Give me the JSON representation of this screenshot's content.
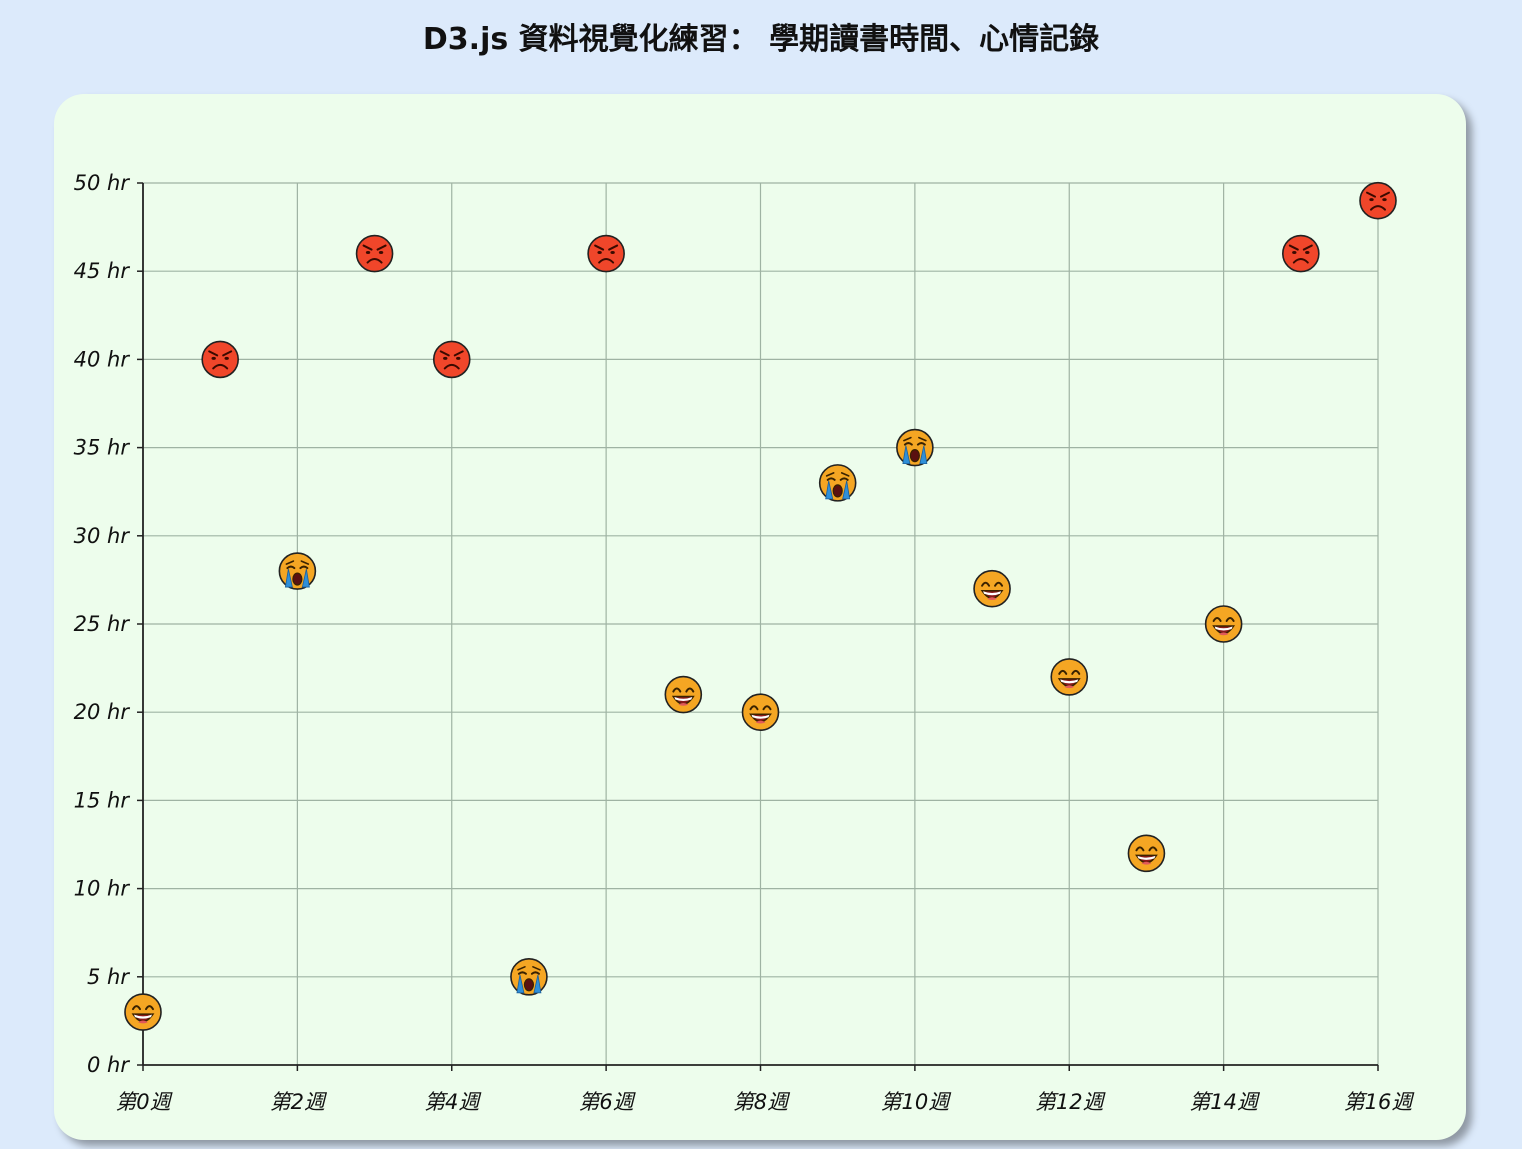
{
  "title": "D3.js 資料視覺化練習： 學期讀書時間、心情記錄",
  "chart_data": {
    "type": "scatter",
    "title": "D3.js 資料視覺化練習： 學期讀書時間、心情記錄",
    "xlabel": "",
    "ylabel": "",
    "x_tick_labels": [
      "第0週",
      "第2週",
      "第4週",
      "第6週",
      "第8週",
      "第10週",
      "第12週",
      "第14週",
      "第16週"
    ],
    "x_ticks": [
      0,
      2,
      4,
      6,
      8,
      10,
      12,
      14,
      16
    ],
    "y_tick_labels": [
      "0 hr",
      "5 hr",
      "10 hr",
      "15 hr",
      "20 hr",
      "25 hr",
      "30 hr",
      "35 hr",
      "40 hr",
      "45 hr",
      "50 hr"
    ],
    "y_ticks": [
      0,
      5,
      10,
      15,
      20,
      25,
      30,
      35,
      40,
      45,
      50
    ],
    "xlim": [
      0,
      16
    ],
    "ylim": [
      0,
      50
    ],
    "grid": true,
    "colors": {
      "happy": "#f5a623",
      "crying": "#f5a623",
      "angry": "#f0462a",
      "grid": "#9fb3a3",
      "axis": "#222222"
    },
    "points": [
      {
        "x": 0,
        "y": 3,
        "mood": "happy"
      },
      {
        "x": 1,
        "y": 40,
        "mood": "angry"
      },
      {
        "x": 2,
        "y": 28,
        "mood": "crying"
      },
      {
        "x": 3,
        "y": 46,
        "mood": "angry"
      },
      {
        "x": 4,
        "y": 40,
        "mood": "angry"
      },
      {
        "x": 5,
        "y": 5,
        "mood": "crying"
      },
      {
        "x": 6,
        "y": 46,
        "mood": "angry"
      },
      {
        "x": 7,
        "y": 21,
        "mood": "happy"
      },
      {
        "x": 8,
        "y": 20,
        "mood": "happy"
      },
      {
        "x": 9,
        "y": 33,
        "mood": "crying"
      },
      {
        "x": 10,
        "y": 35,
        "mood": "crying"
      },
      {
        "x": 11,
        "y": 27,
        "mood": "happy"
      },
      {
        "x": 12,
        "y": 22,
        "mood": "happy"
      },
      {
        "x": 13,
        "y": 12,
        "mood": "happy"
      },
      {
        "x": 14,
        "y": 25,
        "mood": "happy"
      },
      {
        "x": 15,
        "y": 46,
        "mood": "angry"
      },
      {
        "x": 16,
        "y": 49,
        "mood": "angry"
      }
    ]
  }
}
